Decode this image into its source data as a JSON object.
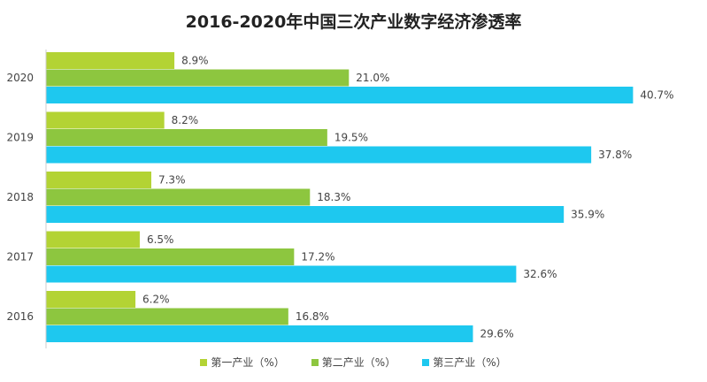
{
  "title": "2016-2020年中国三次产业数字经济渗透率",
  "chart_data": {
    "type": "bar",
    "orientation": "horizontal",
    "title": "2016-2020年中国三次产业数字经济渗透率",
    "categories": [
      "2020",
      "2019",
      "2018",
      "2017",
      "2016"
    ],
    "series": [
      {
        "name": "第一产业（%）",
        "color": "#b3d334",
        "values": [
          8.9,
          8.2,
          7.3,
          6.5,
          6.2
        ],
        "labels": [
          "8.9%",
          "8.2%",
          "7.3%",
          "6.5%",
          "6.2%"
        ]
      },
      {
        "name": "第二产业（%）",
        "color": "#8dc63f",
        "values": [
          21.0,
          19.5,
          18.3,
          17.2,
          16.8
        ],
        "labels": [
          "21.0%",
          "19.5%",
          "18.3%",
          "17.2%",
          "16.8%"
        ]
      },
      {
        "name": "第三产业（%）",
        "color": "#1ec8ef",
        "values": [
          40.7,
          37.8,
          35.9,
          32.6,
          29.6
        ],
        "labels": [
          "40.7%",
          "37.8%",
          "35.9%",
          "32.6%",
          "29.6%"
        ]
      }
    ],
    "xlim": [
      0,
      45
    ],
    "legend_position": "bottom",
    "grid": false
  }
}
